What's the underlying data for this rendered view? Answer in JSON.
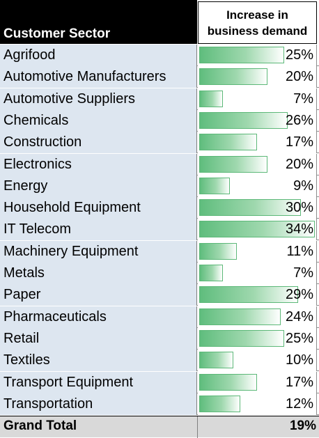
{
  "header": {
    "sector_label": "Customer Sector",
    "demand_label_line1": "Increase in",
    "demand_label_line2": "business demand"
  },
  "colors": {
    "header_bg": "#000000",
    "label_bg": "#dde6f0",
    "bar_green": "#5fbd7d",
    "total_bg": "#d9d9d9"
  },
  "chart_data": {
    "type": "table",
    "columns": [
      "Customer Sector",
      "Increase in business demand"
    ],
    "max_value": 34,
    "rows": [
      {
        "sector": "Agrifood",
        "value": 25,
        "label": "25%"
      },
      {
        "sector": "Automotive Manufacturers",
        "value": 20,
        "label": "20%"
      },
      {
        "sector": "Automotive Suppliers",
        "value": 7,
        "label": "7%"
      },
      {
        "sector": "Chemicals",
        "value": 26,
        "label": "26%"
      },
      {
        "sector": "Construction",
        "value": 17,
        "label": "17%"
      },
      {
        "sector": "Electronics",
        "value": 20,
        "label": "20%"
      },
      {
        "sector": "Energy",
        "value": 9,
        "label": "9%"
      },
      {
        "sector": "Household Equipment",
        "value": 30,
        "label": "30%"
      },
      {
        "sector": "IT Telecom",
        "value": 34,
        "label": "34%"
      },
      {
        "sector": "Machinery Equipment",
        "value": 11,
        "label": "11%"
      },
      {
        "sector": "Metals",
        "value": 7,
        "label": "7%"
      },
      {
        "sector": "Paper",
        "value": 29,
        "label": "29%"
      },
      {
        "sector": "Pharmaceuticals",
        "value": 24,
        "label": "24%"
      },
      {
        "sector": "Retail",
        "value": 25,
        "label": "25%"
      },
      {
        "sector": "Textiles",
        "value": 10,
        "label": "10%"
      },
      {
        "sector": "Transport Equipment",
        "value": 17,
        "label": "17%"
      },
      {
        "sector": "Transportation",
        "value": 12,
        "label": "12%"
      }
    ],
    "total": {
      "label": "Grand Total",
      "value": 19,
      "value_label": "19%"
    }
  }
}
